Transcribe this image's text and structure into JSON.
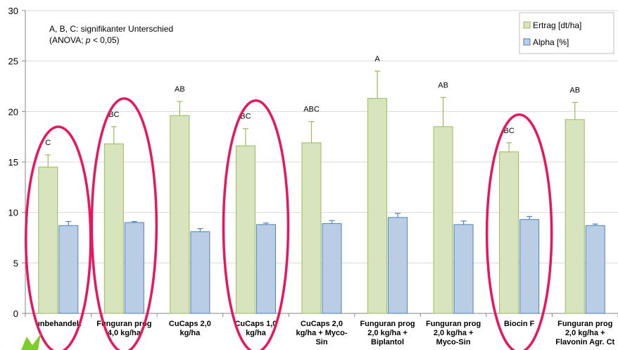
{
  "chart_data": {
    "type": "bar",
    "categories": [
      [
        "unbehandelt"
      ],
      [
        "Funguran prog",
        "4,0 kg/ha"
      ],
      [
        "CuCaps 2,0",
        "kg/ha"
      ],
      [
        "CuCaps 1,0",
        "kg/ha"
      ],
      [
        "CuCaps 2,0",
        "kg/ha + Myco-",
        "Sin"
      ],
      [
        "Funguran prog",
        "2,0 kg/ha +",
        "Biplantol"
      ],
      [
        "Funguran prog",
        "2,0 kg/ha +",
        "Myco-Sin"
      ],
      [
        "Biocin F"
      ],
      [
        "Funguran prog",
        "2,0 kg/ha +",
        "Flavonin Agr. Ct"
      ]
    ],
    "series": [
      {
        "name": "Ertrag [dt/ha]",
        "color": "#d7e4bd",
        "stroke": "#9bbb59",
        "values": [
          14.5,
          16.8,
          19.6,
          16.6,
          16.9,
          21.3,
          18.5,
          16.0,
          19.2
        ],
        "errors": [
          1.2,
          1.7,
          1.4,
          1.7,
          2.1,
          2.7,
          2.9,
          0.9,
          1.7
        ]
      },
      {
        "name": "Alpha [%]",
        "color": "#b9cde5",
        "stroke": "#4f81bd",
        "values": [
          8.7,
          9.0,
          8.1,
          8.8,
          8.9,
          9.5,
          8.8,
          9.3,
          8.7
        ],
        "errors": [
          0.4,
          0.1,
          0.3,
          0.15,
          0.3,
          0.4,
          0.35,
          0.3,
          0.15
        ]
      }
    ],
    "significance": [
      "C",
      "BC",
      "AB",
      "BC",
      "ABC",
      "A",
      "AB",
      "BC",
      "AB"
    ],
    "annotation": [
      "A, B, C: signifikanter Unterschied",
      "(ANOVA; p < 0,05)"
    ],
    "yticks": [
      0,
      5,
      10,
      15,
      20,
      25,
      30
    ],
    "ylim": [
      0,
      30
    ],
    "grid": true,
    "legend_position": "top-right",
    "highlighted_categories": [
      0,
      1,
      3,
      7
    ],
    "highlight_color": "#e8175d",
    "title": "",
    "xlabel": "",
    "ylabel": ""
  }
}
